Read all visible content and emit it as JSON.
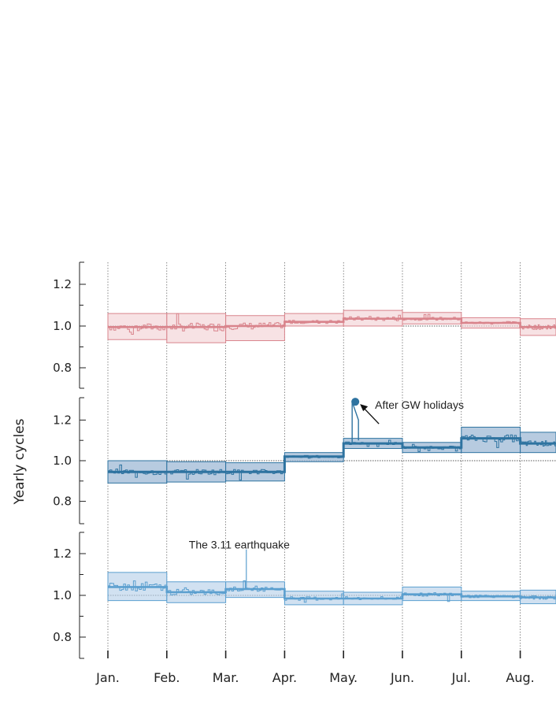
{
  "chart_data": {
    "type": "line",
    "ylabel": "Yearly cycles",
    "categories": [
      "Jan.",
      "Feb.",
      "Mar.",
      "Apr.",
      "May.",
      "Jun.",
      "Jul.",
      "Aug."
    ],
    "yticks": [
      "0.8",
      "1.0",
      "1.2"
    ],
    "ylim": [
      0.73,
      1.3
    ],
    "reference": 1.0,
    "grid_vertical": true,
    "colors": {
      "pink": "#d9848c",
      "pink_fill": "#f3d3d6",
      "dark": "#2e73a0",
      "dark_fill": "#9fbad6",
      "light": "#5b9fcf",
      "light_fill": "#b8d1ea"
    },
    "panels": [
      {
        "name": "",
        "color_key": "pink",
        "segments": [
          {
            "month": "Jan.",
            "mean": 0.995,
            "lo": 0.935,
            "hi": 1.06
          },
          {
            "month": "Feb.",
            "mean": 0.995,
            "lo": 0.92,
            "hi": 1.06
          },
          {
            "month": "Mar.",
            "mean": 1.0,
            "lo": 0.93,
            "hi": 1.05
          },
          {
            "month": "Apr.",
            "mean": 1.02,
            "lo": 1.0,
            "hi": 1.06
          },
          {
            "month": "May.",
            "mean": 1.035,
            "lo": 1.0,
            "hi": 1.075
          },
          {
            "month": "Jun.",
            "mean": 1.035,
            "lo": 1.01,
            "hi": 1.065
          },
          {
            "month": "Jul.",
            "mean": 1.015,
            "lo": 0.99,
            "hi": 1.04
          },
          {
            "month": "Aug.",
            "mean": 0.995,
            "lo": 0.955,
            "hi": 1.035
          }
        ]
      },
      {
        "name": "",
        "color_key": "dark",
        "segments": [
          {
            "month": "Jan.",
            "mean": 0.945,
            "lo": 0.89,
            "hi": 1.0
          },
          {
            "month": "Feb.",
            "mean": 0.945,
            "lo": 0.895,
            "hi": 0.995
          },
          {
            "month": "Mar.",
            "mean": 0.945,
            "lo": 0.9,
            "hi": 0.99
          },
          {
            "month": "Apr.",
            "mean": 1.02,
            "lo": 0.995,
            "hi": 1.04
          },
          {
            "month": "May.",
            "mean": 1.085,
            "lo": 1.06,
            "hi": 1.11
          },
          {
            "month": "Jun.",
            "mean": 1.065,
            "lo": 1.04,
            "hi": 1.09
          },
          {
            "month": "Jul.",
            "mean": 1.11,
            "lo": 1.04,
            "hi": 1.165
          },
          {
            "month": "Aug.",
            "mean": 1.085,
            "lo": 1.04,
            "hi": 1.14
          }
        ],
        "highlight": {
          "x": 4.2,
          "y": 1.29
        }
      },
      {
        "name": "",
        "color_key": "light",
        "segments": [
          {
            "month": "Jan.",
            "mean": 1.04,
            "lo": 0.975,
            "hi": 1.11
          },
          {
            "month": "Feb.",
            "mean": 1.015,
            "lo": 0.965,
            "hi": 1.065
          },
          {
            "month": "Mar.",
            "mean": 1.03,
            "lo": 0.99,
            "hi": 1.065
          },
          {
            "month": "Apr.",
            "mean": 0.985,
            "lo": 0.955,
            "hi": 1.02
          },
          {
            "month": "May.",
            "mean": 0.985,
            "lo": 0.955,
            "hi": 1.015
          },
          {
            "month": "Jun.",
            "mean": 1.005,
            "lo": 0.975,
            "hi": 1.04
          },
          {
            "month": "Jul.",
            "mean": 0.995,
            "lo": 0.975,
            "hi": 1.02
          },
          {
            "month": "Aug.",
            "mean": 0.99,
            "lo": 0.96,
            "hi": 1.025
          }
        ],
        "spike": {
          "x": 2.35,
          "y": 1.22
        }
      }
    ],
    "annotations": [
      {
        "text": "After GW holidays",
        "panel": 1,
        "x": 4.2,
        "y": 1.29
      },
      {
        "text": "The 3.11 earthquake",
        "panel": 2,
        "x": 2.35,
        "y": 1.22
      }
    ]
  }
}
